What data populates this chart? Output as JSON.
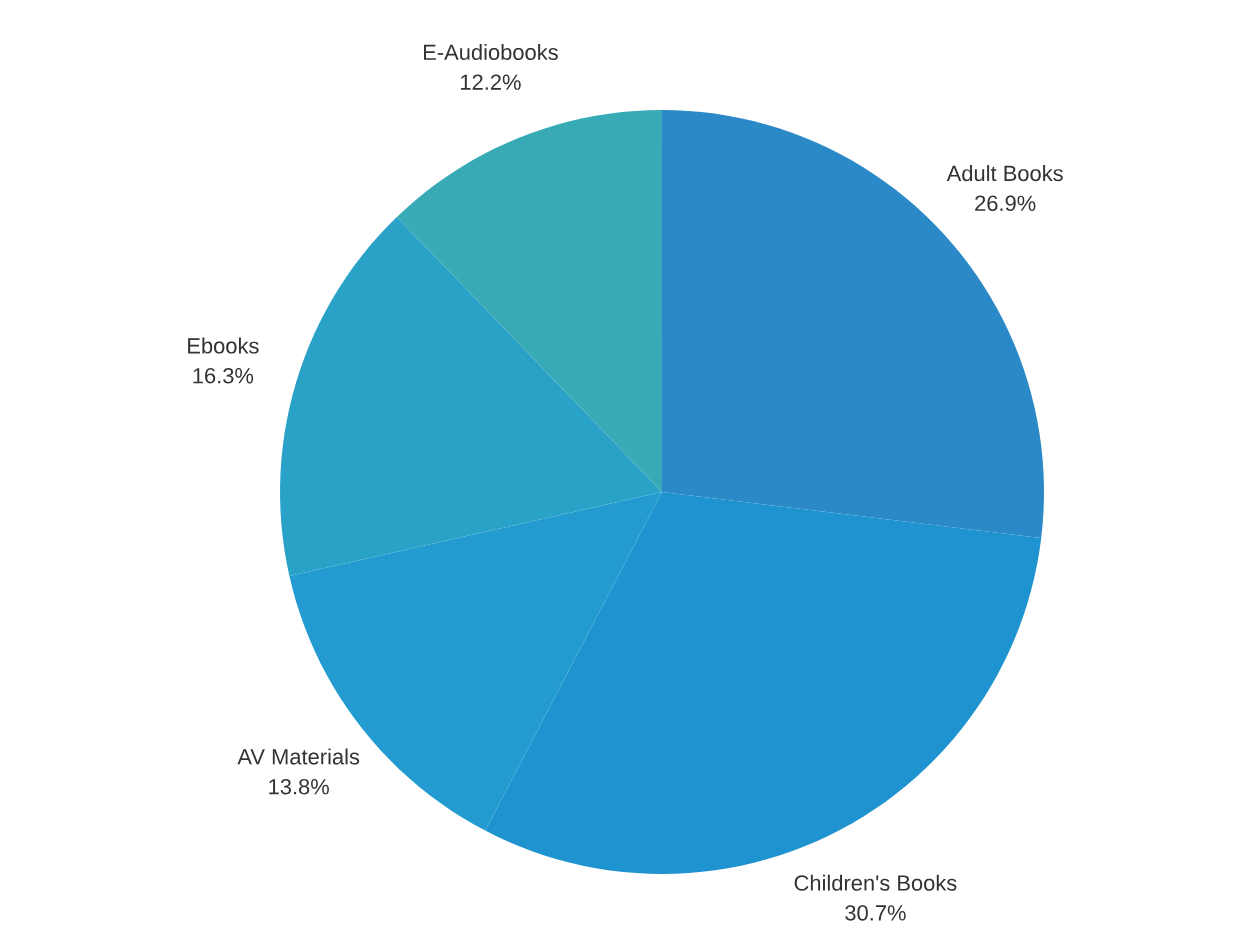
{
  "chart_data": {
    "type": "pie",
    "categories": [
      "Adult Books",
      "Children's Books",
      "AV Materials",
      "Ebooks",
      "E-Audiobooks"
    ],
    "values": [
      26.9,
      30.7,
      13.8,
      16.3,
      12.2
    ],
    "value_labels": [
      "26.9%",
      "30.7%",
      "13.8%",
      "16.3%",
      "12.2%"
    ],
    "colors": [
      "#2a89c6",
      "#1f93cf",
      "#239bd0",
      "#2aa2c8",
      "#37aab6"
    ]
  }
}
